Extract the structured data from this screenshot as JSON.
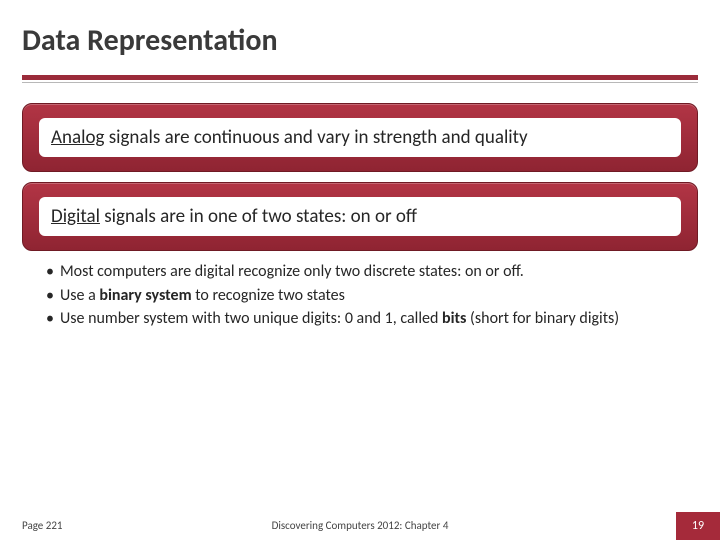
{
  "title": "Data Representation",
  "colors": {
    "accent": "#9b2b3a",
    "pill_top": "#b23545",
    "pill_bottom": "#8f2432",
    "pill_border": "#6f1a24",
    "slide_num_bg": "#a52a3a",
    "text": "#262626",
    "divider_thin": "#b8b8b8"
  },
  "pill1": {
    "prefix": "Analog",
    "rest": " signals are continuous and vary in strength and quality"
  },
  "pill2": {
    "prefix": "Digital",
    "rest": " signals are in one of two states: on or off"
  },
  "bullets": {
    "b1": "Most computers are digital recognize only two discrete states: on or off.",
    "b2_pre": "Use a ",
    "b2_bold": "binary system",
    "b2_post": " to recognize two states",
    "b3_pre": "Use number system with two unique digits: 0 and 1, called ",
    "b3_bold": "bits",
    "b3_post": " (short for binary digits)"
  },
  "footer": {
    "page_ref": "Page 221",
    "center": "Discovering Computers 2012: Chapter 4",
    "slide_num": "19"
  }
}
